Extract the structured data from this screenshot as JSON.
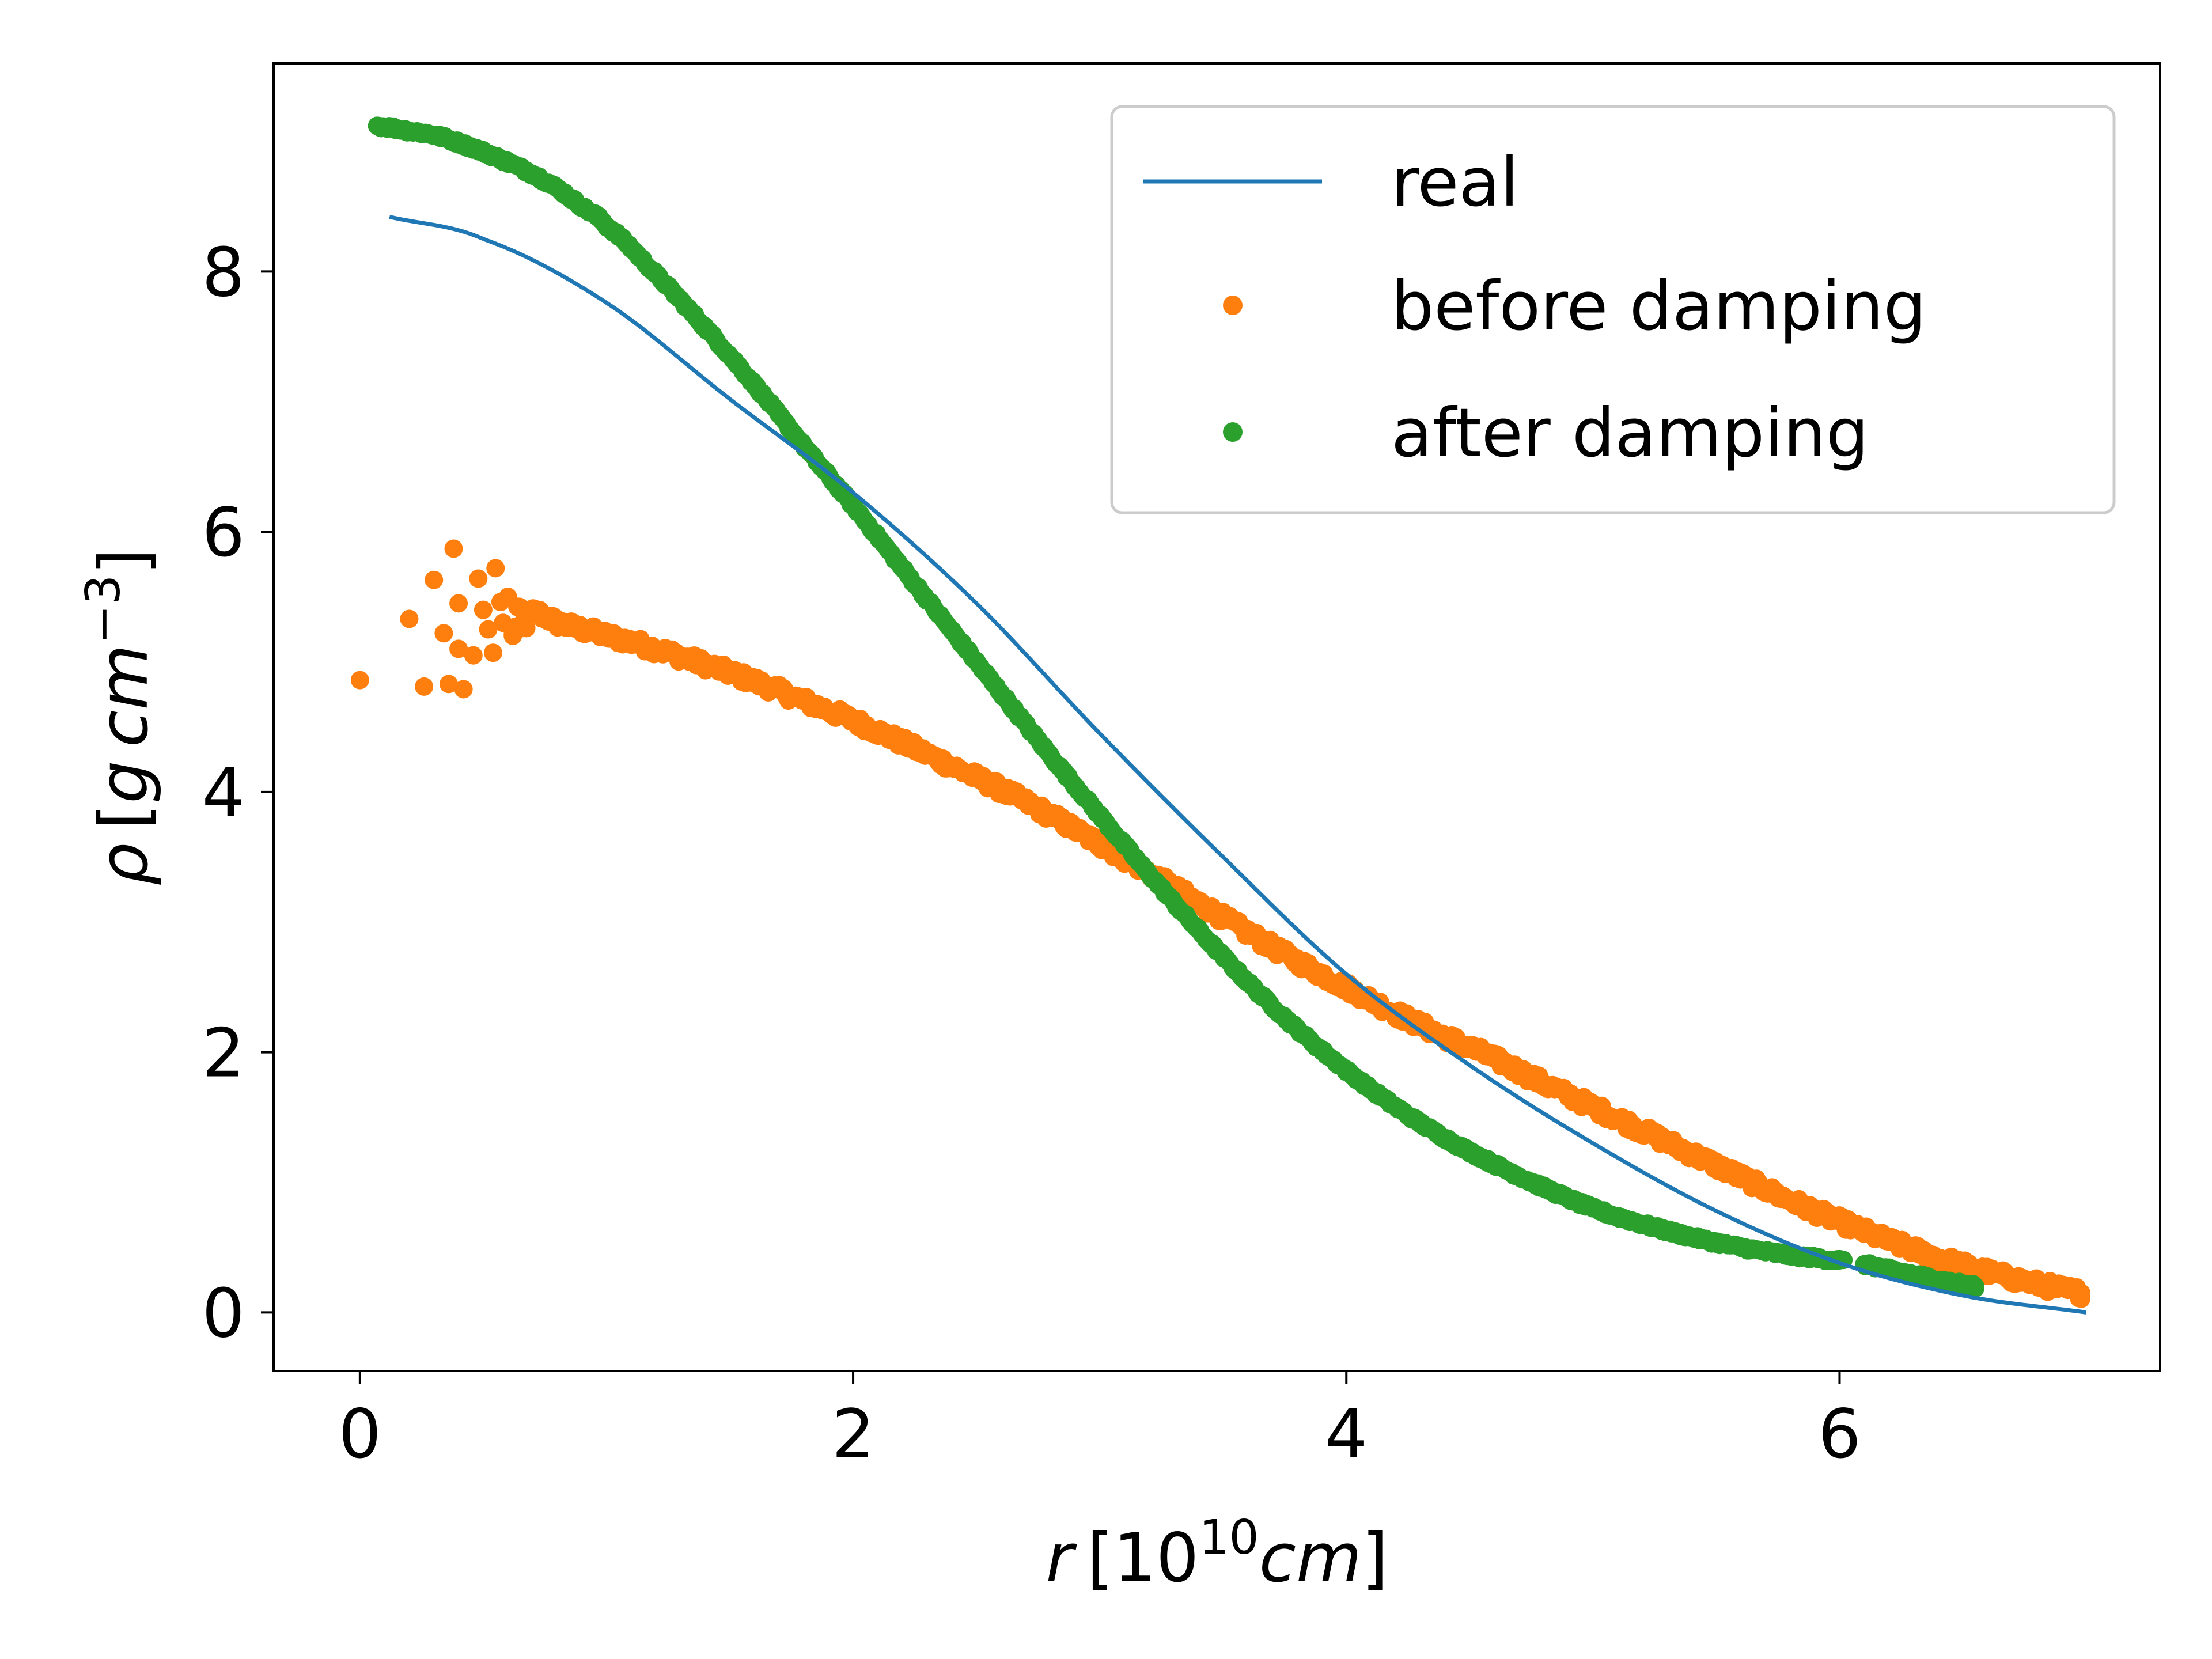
{
  "chart_data": {
    "type": "line",
    "title": "",
    "xlabel": "r [10^10 cm]",
    "ylabel": "ρ [g cm^-3]",
    "xlim": [
      -0.35,
      7.3
    ],
    "ylim": [
      -0.45,
      9.6
    ],
    "xticks": [
      0,
      2,
      4,
      6
    ],
    "yticks": [
      0,
      2,
      4,
      6,
      8
    ],
    "xtick_labels": [
      "0",
      "2",
      "4",
      "6"
    ],
    "ytick_labels": [
      "0",
      "2",
      "4",
      "6",
      "8"
    ],
    "grid": false,
    "legend_position": "top-right",
    "colors": {
      "real": "#1f77b4",
      "before": "#ff7f0e",
      "after": "#2ca02c"
    },
    "series": [
      {
        "name": "real",
        "style": "line",
        "x": [
          0.12,
          0.5,
          1.0,
          1.5,
          2.0,
          2.5,
          3.0,
          3.5,
          4.0,
          4.5,
          5.0,
          5.5,
          6.0,
          6.5,
          7.0
        ],
        "y": [
          8.42,
          8.25,
          7.76,
          7.02,
          6.3,
          5.45,
          4.45,
          3.5,
          2.6,
          1.9,
          1.3,
          0.78,
          0.38,
          0.13,
          0.0
        ]
      },
      {
        "name": "before damping",
        "style": "scatter",
        "x": [
          0.0,
          0.2,
          0.26,
          0.3,
          0.34,
          0.36,
          0.38,
          0.4,
          0.4,
          0.42,
          0.46,
          0.48,
          0.5,
          0.52,
          0.54,
          0.55,
          0.57,
          0.58,
          0.6,
          0.62,
          0.64,
          0.66,
          0.7,
          0.75,
          0.8,
          0.9,
          1.0,
          1.2,
          1.4,
          1.6,
          1.8,
          2.0,
          2.2,
          2.4,
          2.6,
          2.8,
          3.0,
          3.2,
          3.4,
          3.6,
          3.8,
          4.0,
          4.2,
          4.4,
          4.6,
          4.8,
          5.0,
          5.2,
          5.4,
          5.6,
          5.8,
          6.0,
          6.2,
          6.4,
          6.6,
          6.8,
          6.98
        ],
        "y": [
          4.86,
          5.33,
          4.81,
          5.63,
          5.22,
          4.83,
          5.87,
          5.45,
          5.1,
          4.79,
          5.05,
          5.64,
          5.4,
          5.25,
          5.07,
          5.72,
          5.46,
          5.3,
          5.5,
          5.2,
          5.42,
          5.26,
          5.38,
          5.35,
          5.3,
          5.25,
          5.2,
          5.1,
          4.98,
          4.85,
          4.7,
          4.55,
          4.38,
          4.2,
          4.02,
          3.82,
          3.6,
          3.38,
          3.15,
          2.92,
          2.7,
          2.5,
          2.3,
          2.12,
          1.95,
          1.76,
          1.58,
          1.4,
          1.22,
          1.04,
          0.86,
          0.7,
          0.55,
          0.42,
          0.31,
          0.22,
          0.15
        ]
      },
      {
        "name": "after damping",
        "style": "scatter",
        "x": [
          0.07,
          0.15,
          0.2,
          0.3,
          0.4,
          0.5,
          0.6,
          0.7,
          0.8,
          0.9,
          1.0,
          1.2,
          1.4,
          1.6,
          1.8,
          2.0,
          2.2,
          2.4,
          2.6,
          2.8,
          3.0,
          3.2,
          3.4,
          3.6,
          3.8,
          4.0,
          4.2,
          4.4,
          4.6,
          4.8,
          5.0,
          5.2,
          5.4,
          5.6,
          5.8,
          6.0,
          6.1,
          6.2,
          6.3,
          6.4,
          6.55
        ],
        "y": [
          9.12,
          9.1,
          9.08,
          9.05,
          8.99,
          8.92,
          8.84,
          8.75,
          8.64,
          8.5,
          8.35,
          7.98,
          7.57,
          7.13,
          6.66,
          6.2,
          5.72,
          5.24,
          4.76,
          4.28,
          3.82,
          3.37,
          2.94,
          2.54,
          2.18,
          1.86,
          1.58,
          1.34,
          1.14,
          0.96,
          0.8,
          0.68,
          0.58,
          0.5,
          0.44,
          0.4,
          0.37,
          0.33,
          0.29,
          0.25,
          0.2
        ]
      }
    ]
  }
}
